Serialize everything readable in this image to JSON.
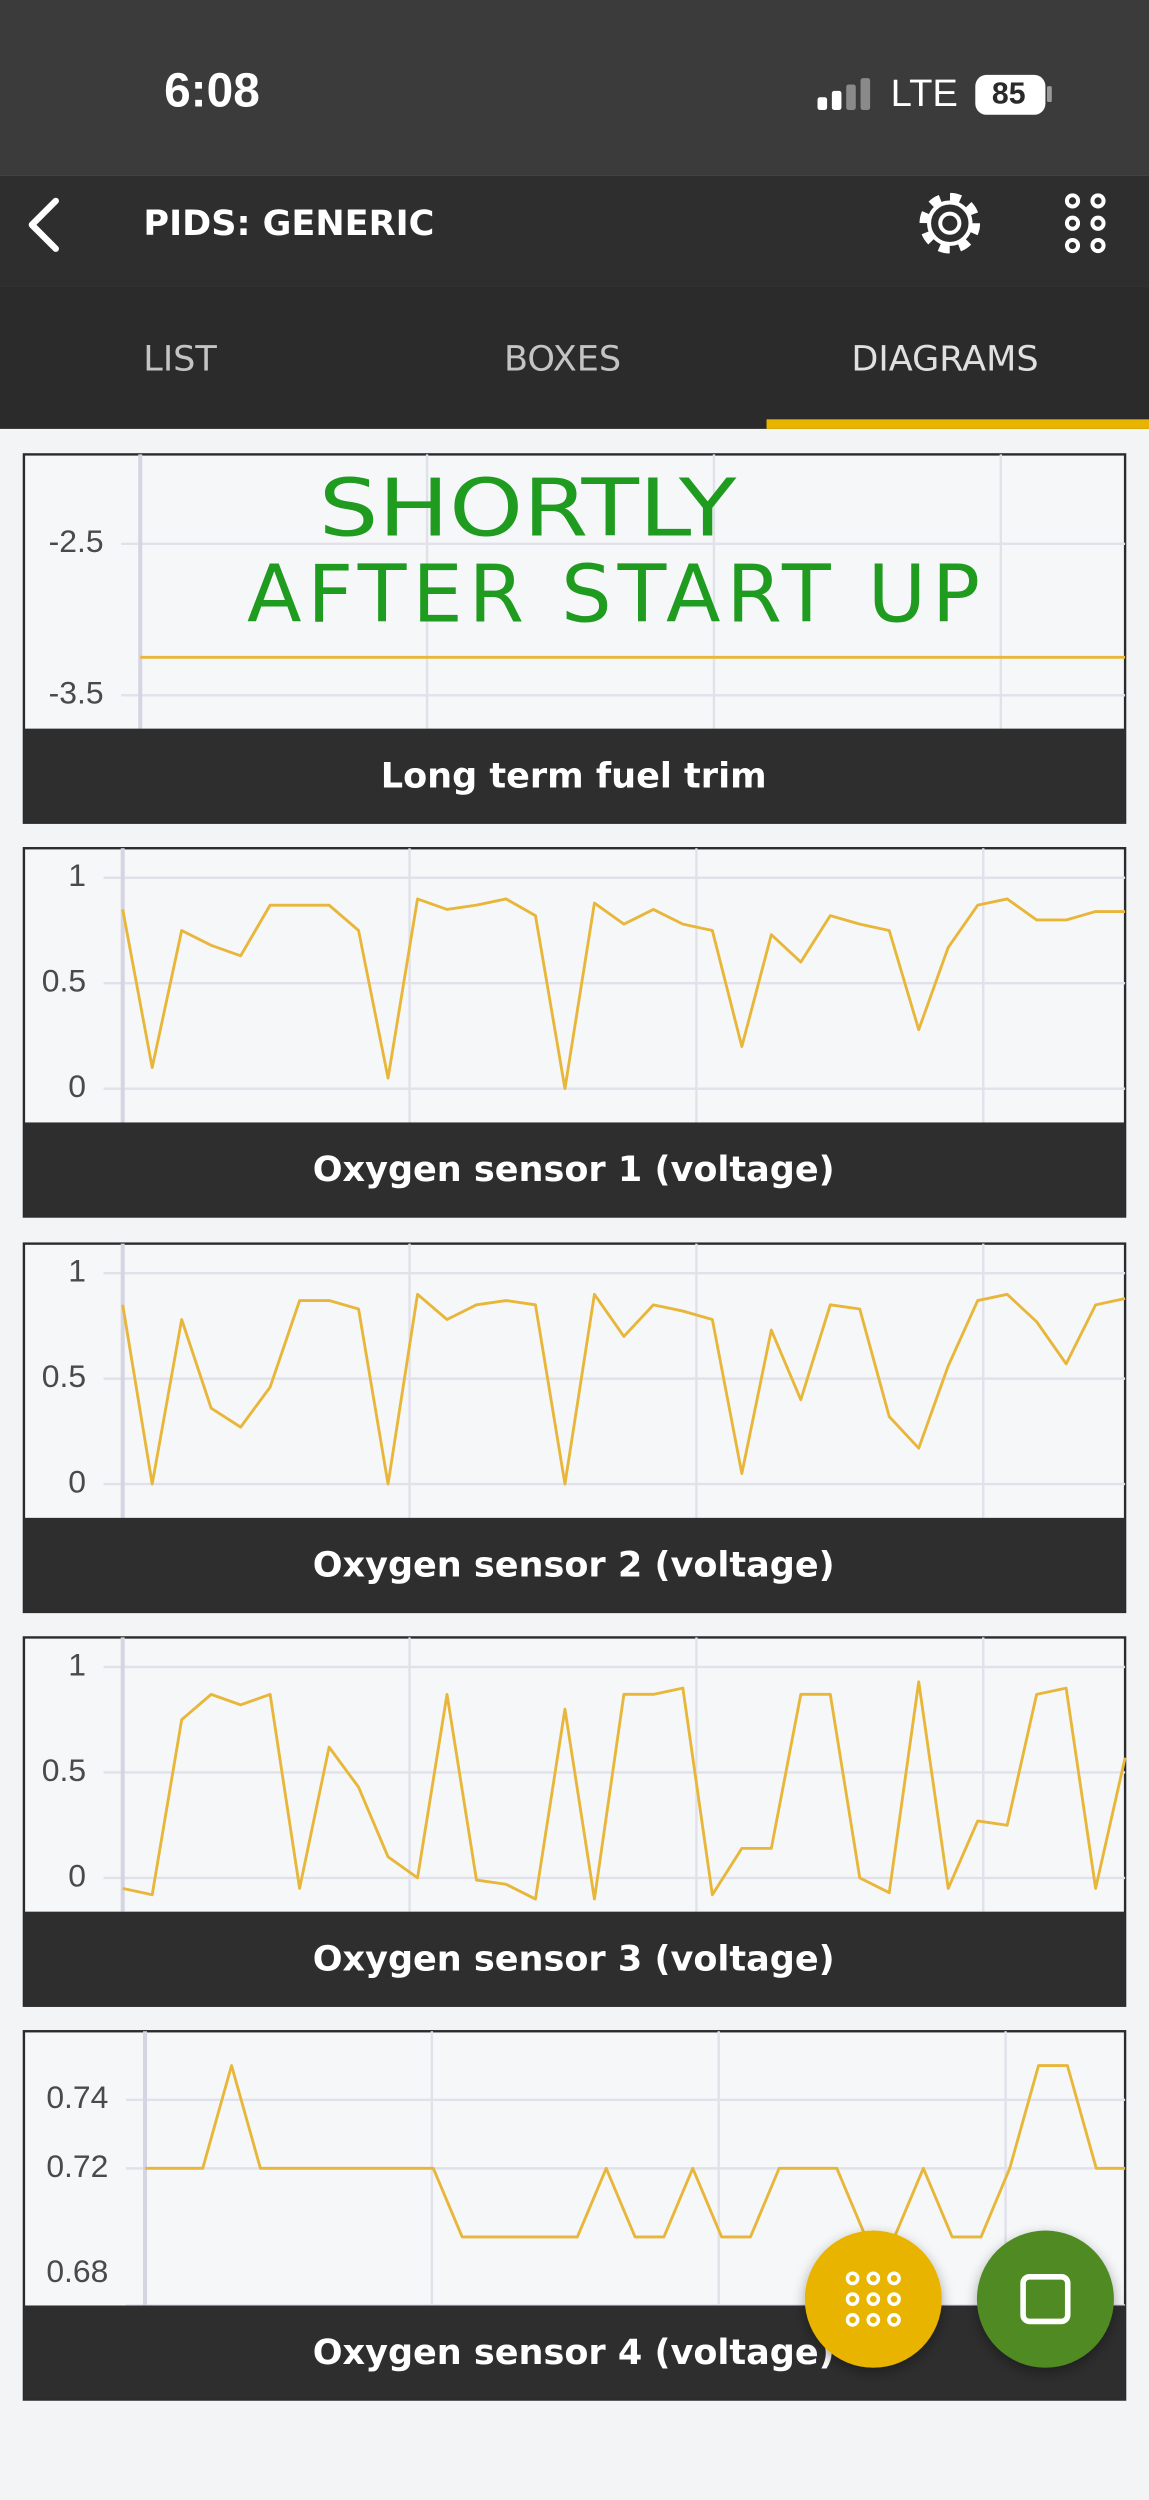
{
  "status_bar": {
    "time": "6:08",
    "network": "LTE",
    "battery": "85"
  },
  "toolbar": {
    "title": "PIDS: GENERIC"
  },
  "tabs": [
    "LIST",
    "BOXES",
    "DIAGRAMS"
  ],
  "annotation": [
    "SHORTLY",
    "AFTER START UP"
  ],
  "chart_data": [
    {
      "type": "line",
      "title": "Long term fuel trim",
      "color": "#e8b73a",
      "ylim": [
        -3.72,
        -1.91
      ],
      "yticks": [
        -2.5,
        -3.5
      ],
      "values": [
        -3.25,
        -3.25,
        -3.25,
        -3.25,
        -3.25,
        -3.25,
        -3.25,
        -3.25,
        -3.25,
        -3.25,
        -3.25,
        -3.25,
        -3.25,
        -3.25,
        -3.25,
        -3.25,
        -3.25,
        -3.25,
        -3.25,
        -3.25,
        -3.25,
        -3.25,
        -3.25,
        -3.25,
        -3.25,
        -3.25,
        -3.25,
        -3.25,
        -3.25,
        -3.25,
        -3.25,
        -3.25,
        -3.25,
        -3.25,
        -3.25
      ]
    },
    {
      "type": "line",
      "title": "Oxygen sensor 1 (voltage)",
      "color": "#e8b73a",
      "ylim": [
        -0.16,
        1.14
      ],
      "yticks": [
        1,
        0.5,
        0
      ],
      "values": [
        0.85,
        0.1,
        0.75,
        0.68,
        0.63,
        0.87,
        0.87,
        0.87,
        0.75,
        0.05,
        0.9,
        0.85,
        0.87,
        0.9,
        0.82,
        0.0,
        0.88,
        0.78,
        0.85,
        0.78,
        0.75,
        0.2,
        0.73,
        0.6,
        0.82,
        0.78,
        0.75,
        0.28,
        0.67,
        0.87,
        0.9,
        0.8,
        0.8,
        0.84,
        0.84
      ]
    },
    {
      "type": "line",
      "title": "Oxygen sensor 2 (voltage)",
      "color": "#e8b73a",
      "ylim": [
        -0.16,
        1.14
      ],
      "yticks": [
        1,
        0.5,
        0
      ],
      "values": [
        0.85,
        0.0,
        0.78,
        0.36,
        0.27,
        0.46,
        0.87,
        0.87,
        0.83,
        0.0,
        0.9,
        0.78,
        0.85,
        0.87,
        0.85,
        0.0,
        0.9,
        0.7,
        0.85,
        0.82,
        0.78,
        0.05,
        0.73,
        0.4,
        0.85,
        0.83,
        0.32,
        0.17,
        0.56,
        0.87,
        0.9,
        0.77,
        0.57,
        0.85,
        0.88
      ]
    },
    {
      "type": "line",
      "title": "Oxygen sensor 3 (voltage)",
      "color": "#e8b73a",
      "ylim": [
        -0.16,
        1.14
      ],
      "yticks": [
        1,
        0.5,
        0
      ],
      "values": [
        -0.05,
        -0.08,
        0.75,
        0.87,
        0.82,
        0.87,
        -0.05,
        0.62,
        0.43,
        0.1,
        0.0,
        0.87,
        -0.01,
        -0.03,
        -0.1,
        0.8,
        -0.1,
        0.87,
        0.87,
        0.9,
        -0.08,
        0.14,
        0.14,
        0.87,
        0.87,
        0.0,
        -0.07,
        0.93,
        -0.05,
        0.27,
        0.25,
        0.87,
        0.9,
        -0.05,
        0.57
      ]
    },
    {
      "type": "line",
      "title": "Oxygen sensor 4 (voltage)",
      "color": "#e8b73a",
      "ylim": [
        0.68,
        0.76
      ],
      "yticks": [
        0.74,
        0.72,
        0.68
      ],
      "values": [
        0.72,
        0.72,
        0.72,
        0.75,
        0.72,
        0.72,
        0.72,
        0.72,
        0.72,
        0.72,
        0.72,
        0.7,
        0.7,
        0.7,
        0.7,
        0.7,
        0.72,
        0.7,
        0.7,
        0.72,
        0.7,
        0.7,
        0.72,
        0.72,
        0.72,
        0.7,
        0.7,
        0.72,
        0.7,
        0.7,
        0.72,
        0.75,
        0.75,
        0.72,
        0.72
      ]
    }
  ]
}
